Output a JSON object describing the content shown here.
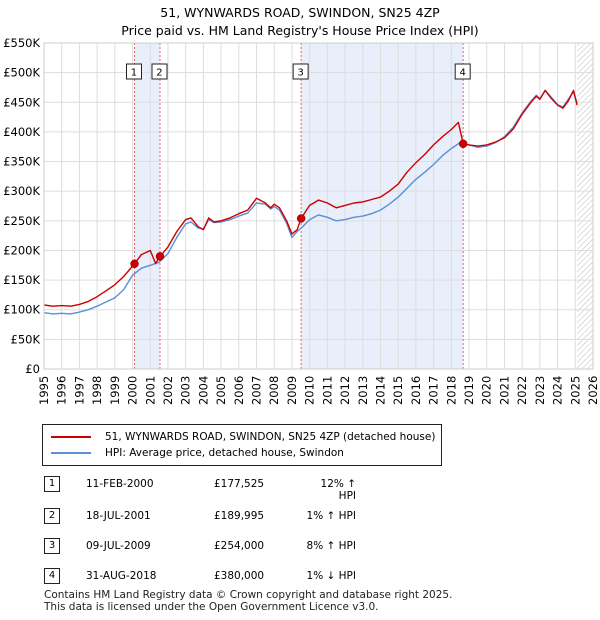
{
  "title_line1": "51, WYNWARDS ROAD, SWINDON, SN25 4ZP",
  "title_line2": "Price paid vs. HM Land Registry's House Price Index (HPI)",
  "chart_data": {
    "type": "line",
    "title": "51, WYNWARDS ROAD, SWINDON, SN25 4ZP",
    "subtitle": "Price paid vs. HM Land Registry's House Price Index (HPI)",
    "xlim": [
      1995,
      2026
    ],
    "ylim": [
      0,
      550000
    ],
    "x_ticks": [
      "1995",
      "1996",
      "1997",
      "1998",
      "1999",
      "2000",
      "2001",
      "2002",
      "2003",
      "2004",
      "2005",
      "2006",
      "2007",
      "2008",
      "2009",
      "2010",
      "2011",
      "2012",
      "2013",
      "2014",
      "2015",
      "2016",
      "2017",
      "2018",
      "2019",
      "2020",
      "2021",
      "2022",
      "2023",
      "2024",
      "2025",
      "2026"
    ],
    "y_ticks": [
      {
        "value": 0,
        "label": "£0"
      },
      {
        "value": 50000,
        "label": "£50K"
      },
      {
        "value": 100000,
        "label": "£100K"
      },
      {
        "value": 150000,
        "label": "£150K"
      },
      {
        "value": 200000,
        "label": "£200K"
      },
      {
        "value": 250000,
        "label": "£250K"
      },
      {
        "value": 300000,
        "label": "£300K"
      },
      {
        "value": 350000,
        "label": "£350K"
      },
      {
        "value": 400000,
        "label": "£400K"
      },
      {
        "value": 450000,
        "label": "£450K"
      },
      {
        "value": 500000,
        "label": "£500K"
      },
      {
        "value": 550000,
        "label": "£550K"
      }
    ],
    "grid": true,
    "forecast_start": 2025.1,
    "shaded_periods": [
      [
        2000.11,
        2001.55
      ],
      [
        2009.52,
        2018.67
      ]
    ],
    "series": [
      {
        "name": "51, WYNWARDS ROAD, SWINDON, SN25 4ZP (detached house)",
        "color": "#cc0000",
        "x": [
          1995,
          1995.5,
          1996,
          1996.5,
          1997,
          1997.5,
          1998,
          1998.5,
          1999,
          1999.5,
          2000.11,
          2000.5,
          2001,
          2001.3,
          2001.55,
          2002,
          2002.5,
          2003,
          2003.3,
          2003.7,
          2004,
          2004.3,
          2004.6,
          2005,
          2005.5,
          2006,
          2006.5,
          2007,
          2007.5,
          2007.8,
          2008,
          2008.3,
          2008.7,
          2009,
          2009.3,
          2009.52,
          2010,
          2010.5,
          2011,
          2011.5,
          2012,
          2012.5,
          2013,
          2013.5,
          2014,
          2014.5,
          2015,
          2015.5,
          2016,
          2016.5,
          2017,
          2017.5,
          2018,
          2018.4,
          2018.67,
          2019,
          2019.5,
          2020,
          2020.5,
          2021,
          2021.5,
          2022,
          2022.5,
          2022.8,
          2023,
          2023.3,
          2023.6,
          2024,
          2024.3,
          2024.6,
          2024.9,
          2025.1
        ],
        "y": [
          108000,
          106000,
          107000,
          106000,
          109000,
          114000,
          122000,
          132000,
          142000,
          156000,
          177525,
          193000,
          200000,
          178000,
          189995,
          206000,
          232000,
          252000,
          255000,
          240000,
          235000,
          255000,
          248000,
          250000,
          255000,
          262000,
          268000,
          288000,
          280000,
          272000,
          278000,
          272000,
          250000,
          228000,
          235000,
          254000,
          276000,
          285000,
          280000,
          272000,
          276000,
          280000,
          282000,
          286000,
          290000,
          300000,
          312000,
          332000,
          348000,
          362000,
          378000,
          392000,
          404000,
          416000,
          380000,
          378000,
          376000,
          378000,
          383000,
          390000,
          405000,
          430000,
          450000,
          460000,
          455000,
          470000,
          458000,
          445000,
          440000,
          452000,
          470000,
          445000
        ]
      },
      {
        "name": "HPI: Average price, detached house, Swindon",
        "color": "#5b8fd6",
        "x": [
          1995,
          1995.5,
          1996,
          1996.5,
          1997,
          1997.5,
          1998,
          1998.5,
          1999,
          1999.5,
          2000,
          2000.5,
          2001,
          2001.5,
          2002,
          2002.5,
          2003,
          2003.3,
          2003.7,
          2004,
          2004.3,
          2004.6,
          2005,
          2005.5,
          2006,
          2006.5,
          2007,
          2007.5,
          2007.8,
          2008,
          2008.3,
          2008.7,
          2009,
          2009.3,
          2009.6,
          2010,
          2010.5,
          2011,
          2011.5,
          2012,
          2012.5,
          2013,
          2013.5,
          2014,
          2014.5,
          2015,
          2015.5,
          2016,
          2016.5,
          2017,
          2017.5,
          2018,
          2018.5,
          2019,
          2019.5,
          2020,
          2020.5,
          2021,
          2021.5,
          2022,
          2022.5,
          2022.8,
          2023,
          2023.3,
          2023.6,
          2024,
          2024.3,
          2024.6,
          2024.9,
          2025.1
        ],
        "y": [
          95000,
          93000,
          94000,
          93000,
          96000,
          100000,
          106000,
          113000,
          120000,
          134000,
          158000,
          170000,
          175000,
          180000,
          195000,
          222000,
          245000,
          248000,
          238000,
          236000,
          252000,
          247000,
          248000,
          252000,
          258000,
          263000,
          280000,
          278000,
          270000,
          274000,
          268000,
          246000,
          222000,
          232000,
          240000,
          252000,
          260000,
          256000,
          250000,
          252000,
          256000,
          258000,
          262000,
          268000,
          278000,
          290000,
          305000,
          320000,
          332000,
          345000,
          360000,
          372000,
          382000,
          378000,
          374000,
          376000,
          382000,
          392000,
          408000,
          432000,
          452000,
          462000,
          456000,
          470000,
          460000,
          446000,
          442000,
          455000,
          468000,
          448000
        ]
      }
    ],
    "sales": [
      {
        "num": "1",
        "x": 2000.11,
        "y": 177525
      },
      {
        "num": "2",
        "x": 2001.55,
        "y": 189995
      },
      {
        "num": "3",
        "x": 2009.52,
        "y": 254000
      },
      {
        "num": "4",
        "x": 2018.67,
        "y": 380000
      }
    ]
  },
  "legend": {
    "property_label": "51, WYNWARDS ROAD, SWINDON, SN25 4ZP (detached house)",
    "hpi_label": "HPI: Average price, detached house, Swindon"
  },
  "sales_table": [
    {
      "num": "1",
      "date": "11-FEB-2000",
      "price": "£177,525",
      "hpi": "12% ↑ HPI"
    },
    {
      "num": "2",
      "date": "18-JUL-2001",
      "price": "£189,995",
      "hpi": "1% ↑ HPI"
    },
    {
      "num": "3",
      "date": "09-JUL-2009",
      "price": "£254,000",
      "hpi": "8% ↑ HPI"
    },
    {
      "num": "4",
      "date": "31-AUG-2018",
      "price": "£380,000",
      "hpi": "1% ↓ HPI"
    }
  ],
  "footer_line1": "Contains HM Land Registry data © Crown copyright and database right 2025.",
  "footer_line2": "This data is licensed under the Open Government Licence v3.0."
}
